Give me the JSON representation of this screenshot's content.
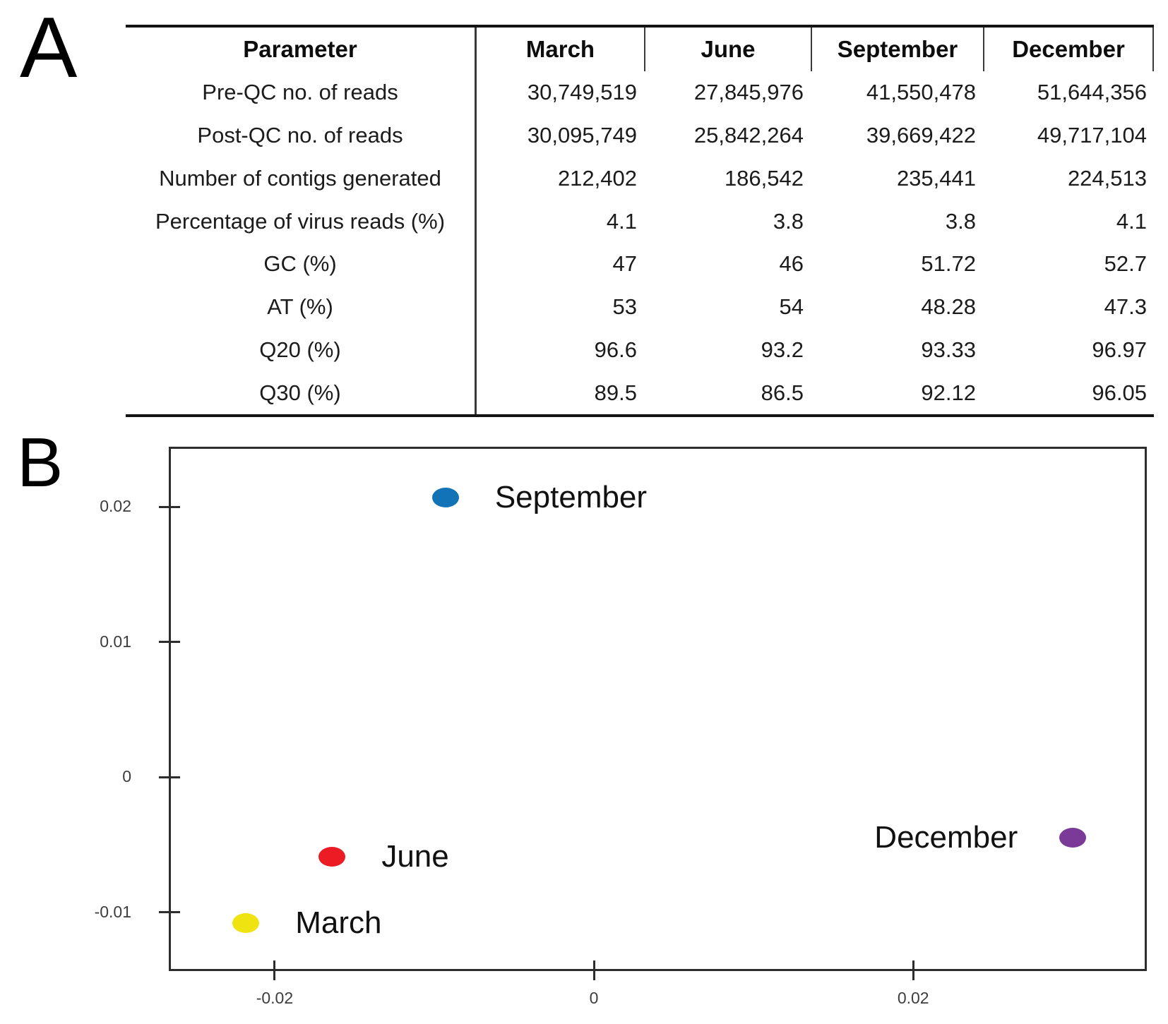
{
  "panels": {
    "a_label": "A",
    "b_label": "B"
  },
  "table": {
    "columns": [
      "Parameter",
      "March",
      "June",
      "September",
      "December"
    ],
    "rows": [
      {
        "label": "Pre-QC no. of reads",
        "values": [
          "30,749,519",
          "27,845,976",
          "41,550,478",
          "51,644,356"
        ]
      },
      {
        "label": "Post-QC no. of reads",
        "values": [
          "30,095,749",
          "25,842,264",
          "39,669,422",
          "49,717,104"
        ]
      },
      {
        "label": "Number of contigs generated",
        "values": [
          "212,402",
          "186,542",
          "235,441",
          "224,513"
        ]
      },
      {
        "label": "Percentage of virus reads (%)",
        "values": [
          "4.1",
          "3.8",
          "3.8",
          "4.1"
        ]
      },
      {
        "label": "GC (%)",
        "values": [
          "47",
          "46",
          "51.72",
          "52.7"
        ]
      },
      {
        "label": "AT (%)",
        "values": [
          "53",
          "54",
          "48.28",
          "47.3"
        ]
      },
      {
        "label": "Q20 (%)",
        "values": [
          "96.6",
          "93.2",
          "93.33",
          "96.97"
        ]
      },
      {
        "label": "Q30 (%)",
        "values": [
          "89.5",
          "86.5",
          "92.12",
          "96.05"
        ]
      }
    ]
  },
  "chart_data": {
    "type": "scatter",
    "title": "",
    "xlabel": "",
    "ylabel": "",
    "grid": false,
    "legend_position": "none",
    "xlim": [
      -0.0265,
      0.0345
    ],
    "ylim": [
      -0.0142,
      0.0243
    ],
    "xticks": [
      -0.02,
      0,
      0.02
    ],
    "xtick_labels": [
      "-0.02",
      "0",
      "0.02"
    ],
    "yticks": [
      0.02,
      0.01,
      0,
      -0.01
    ],
    "ytick_labels": [
      "0.02",
      "0.01",
      "0",
      "-0.01"
    ],
    "points": [
      {
        "label": "March",
        "x": -0.0218,
        "y": -0.0108,
        "color": "#efe312",
        "label_side": "right"
      },
      {
        "label": "June",
        "x": -0.0164,
        "y": -0.0059,
        "color": "#ec1c24",
        "label_side": "right"
      },
      {
        "label": "September",
        "x": -0.0093,
        "y": 0.0207,
        "color": "#1273b7",
        "label_side": "right"
      },
      {
        "label": "December",
        "x": 0.03,
        "y": -0.0045,
        "color": "#7b3a97",
        "label_side": "left"
      }
    ]
  }
}
